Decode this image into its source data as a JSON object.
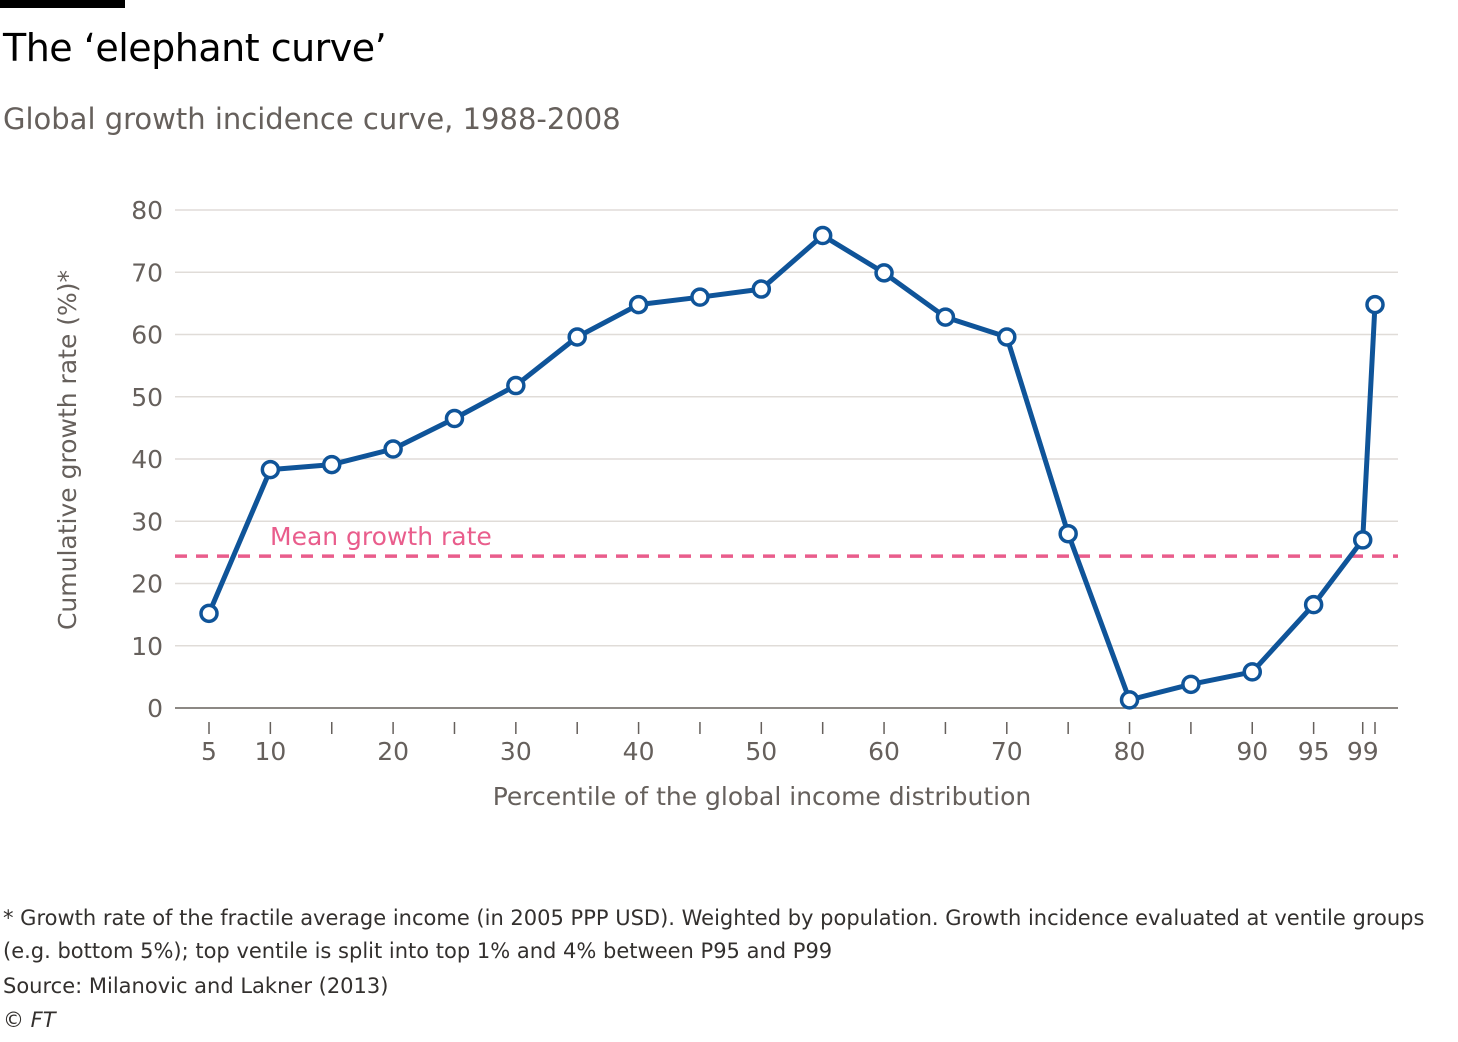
{
  "title": "The ‘elephant curve’",
  "subtitle": "Global growth incidence curve, 1988-2008",
  "footnote": "* Growth rate of the fractile average income (in 2005 PPP USD). Weighted by population. Growth incidence evaluated at ventile groups (e.g. bottom 5%); top ventile is split into top 1% and 4% between P95 and P99",
  "source": "Source: Milanovic and Lakner (2013)",
  "credit": "© FT",
  "chart_data": {
    "type": "line",
    "title": "The ‘elephant curve’",
    "subtitle": "Global growth incidence curve, 1988-2008",
    "xlabel": "Percentile of the global income distribution",
    "ylabel": "Cumulative growth rate (%)*",
    "xlim": [
      3,
      103
    ],
    "ylim": [
      0,
      80
    ],
    "y_ticks": [
      0,
      10,
      20,
      30,
      40,
      50,
      60,
      70,
      80
    ],
    "x_ticks": [
      5,
      10,
      15,
      20,
      25,
      30,
      35,
      40,
      45,
      50,
      55,
      60,
      65,
      70,
      75,
      80,
      85,
      90,
      95,
      99,
      100
    ],
    "x_tick_labels": [
      "5",
      "10",
      "20",
      "30",
      "40",
      "50",
      "60",
      "70",
      "80",
      "90",
      "95",
      "99"
    ],
    "x_tick_label_values": [
      5,
      10,
      20,
      30,
      40,
      50,
      60,
      70,
      80,
      90,
      95,
      99
    ],
    "grid": true,
    "series": [
      {
        "x": [
          5,
          10,
          15,
          20,
          25,
          30,
          35,
          40,
          45,
          50,
          55,
          60,
          65,
          70,
          75,
          80,
          85,
          90,
          95,
          99,
          100
        ],
        "values": [
          15.2,
          38.3,
          39.1,
          41.6,
          46.5,
          51.8,
          59.6,
          64.8,
          66.0,
          67.3,
          75.9,
          69.9,
          62.8,
          59.6,
          28.0,
          1.3,
          3.8,
          5.8,
          16.6,
          27.0,
          64.8
        ],
        "color": "#0f5499"
      }
    ],
    "reference_line": {
      "label": "Mean growth rate",
      "value": 24.4,
      "color": "#e95d8c"
    }
  }
}
